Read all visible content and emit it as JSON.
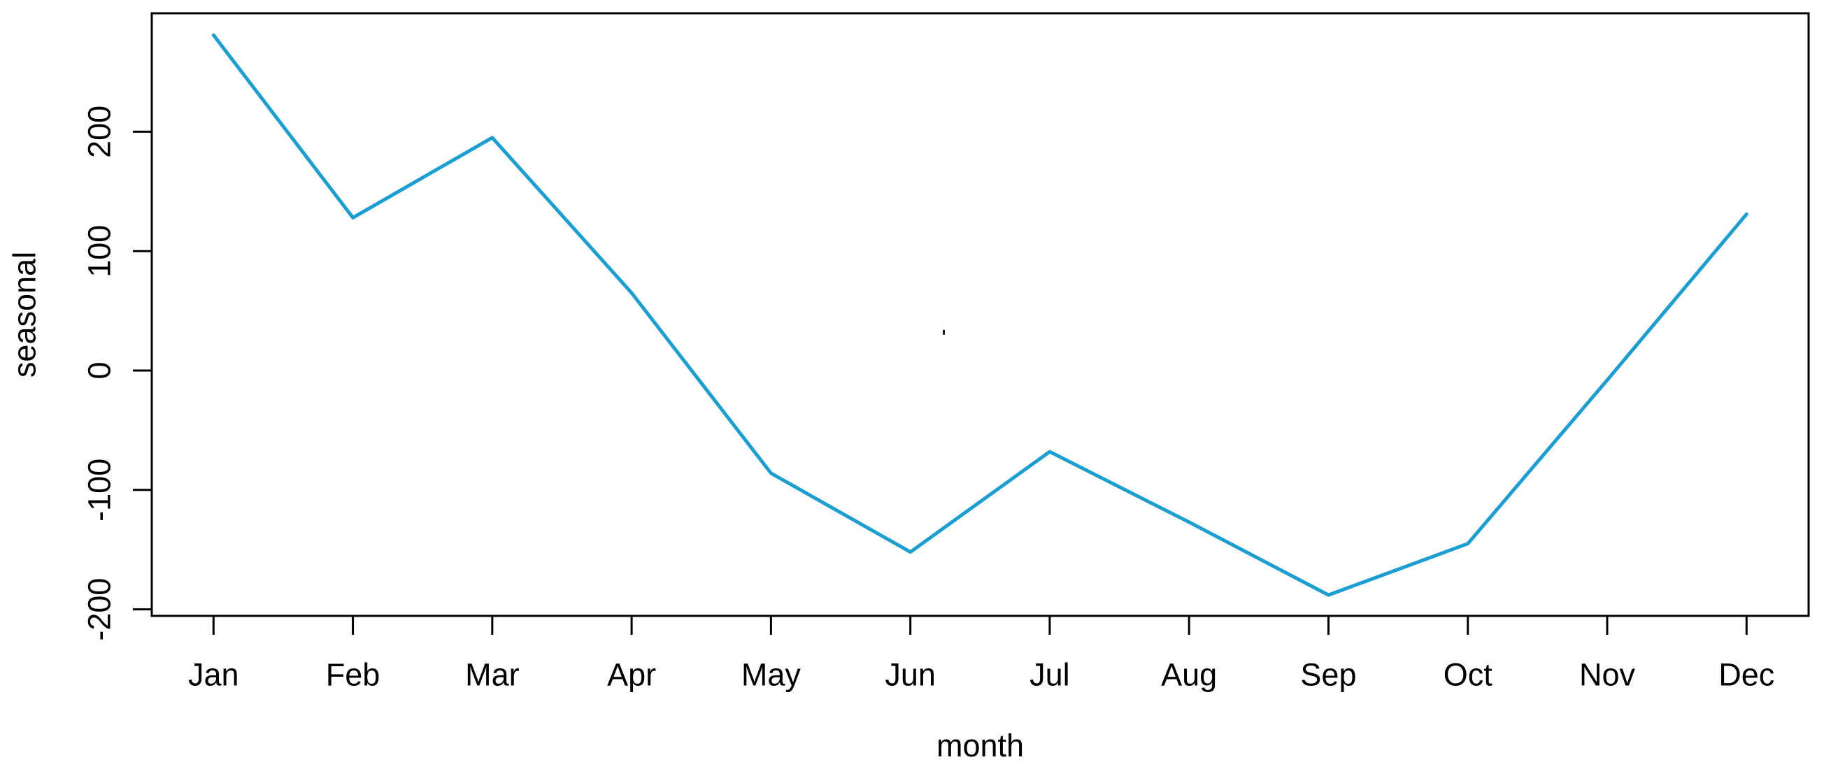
{
  "page": {
    "background": "#ffffff"
  },
  "chart_data": {
    "type": "line",
    "title": "",
    "xlabel": "month",
    "ylabel": "seasonal",
    "categories": [
      "Jan",
      "Feb",
      "Mar",
      "Apr",
      "May",
      "Jun",
      "Jul",
      "Aug",
      "Sep",
      "Oct",
      "Nov",
      "Dec"
    ],
    "series": [
      {
        "name": "seasonal",
        "color": "#1b9ed2",
        "values": [
          281,
          128,
          195,
          65,
          -86,
          -152,
          -68,
          -127,
          -188,
          -145,
          -8,
          131
        ]
      }
    ],
    "x_tick_labels": [
      "Jan",
      "Feb",
      "Mar",
      "Apr",
      "May",
      "Jun",
      "Jul",
      "Aug",
      "Sep",
      "Oct",
      "Nov",
      "Dec"
    ],
    "yticks": [
      -200,
      -100,
      0,
      100,
      200
    ],
    "y_tick_labels": [
      "-200",
      "-100",
      "0",
      "100",
      "200"
    ],
    "ylim": [
      -205,
      299
    ],
    "grid": false,
    "legend_position": "none",
    "axis_color": "#000000",
    "stray_mark": {
      "month_index": 6.24,
      "value": 32,
      "color": "#1a1a1a"
    }
  }
}
